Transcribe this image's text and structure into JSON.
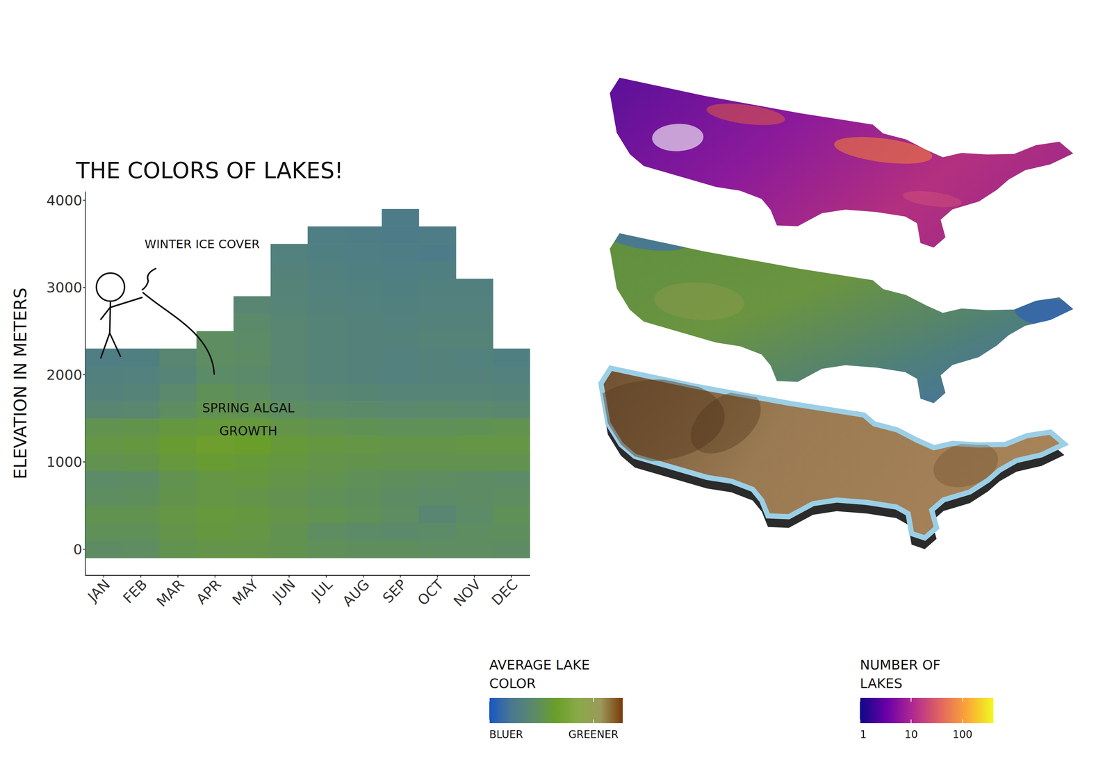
{
  "chart_data": [
    {
      "type": "heatmap",
      "title": "THE COLORS OF LAKES!",
      "y_label": "ELEVATION IN METERS",
      "categories": [
        "JAN",
        "FEB",
        "MAR",
        "APR",
        "MAY",
        "JUN",
        "JUL",
        "AUG",
        "SEP",
        "OCT",
        "NOV",
        "DEC"
      ],
      "y": [
        0,
        200,
        400,
        600,
        800,
        1000,
        1200,
        1400,
        1600,
        1800,
        2000,
        2200,
        2400,
        2600,
        2800,
        3000,
        3200,
        3400,
        3600,
        3800
      ],
      "cells": [
        [
          0.35,
          0.36,
          0.4,
          0.42,
          0.42,
          0.4,
          0.38,
          0.37,
          0.37,
          0.36,
          0.36,
          0.35
        ],
        [
          0.38,
          0.38,
          0.42,
          0.44,
          0.43,
          0.4,
          0.36,
          0.34,
          0.33,
          0.34,
          0.36,
          0.37
        ],
        [
          0.4,
          0.4,
          0.43,
          0.45,
          0.44,
          0.42,
          0.4,
          0.38,
          0.36,
          0.3,
          0.34,
          0.38
        ],
        [
          0.36,
          0.37,
          0.41,
          0.43,
          0.42,
          0.4,
          0.38,
          0.37,
          0.35,
          0.34,
          0.35,
          0.36
        ],
        [
          0.34,
          0.35,
          0.4,
          0.43,
          0.44,
          0.42,
          0.4,
          0.38,
          0.37,
          0.36,
          0.35,
          0.34
        ],
        [
          0.4,
          0.41,
          0.45,
          0.48,
          0.46,
          0.44,
          0.42,
          0.41,
          0.4,
          0.4,
          0.4,
          0.4
        ],
        [
          0.43,
          0.44,
          0.48,
          0.52,
          0.5,
          0.46,
          0.44,
          0.43,
          0.42,
          0.42,
          0.43,
          0.43
        ],
        [
          0.4,
          0.41,
          0.44,
          0.46,
          0.45,
          0.42,
          0.4,
          0.39,
          0.38,
          0.38,
          0.39,
          0.4
        ],
        [
          0.3,
          0.31,
          0.36,
          0.4,
          0.39,
          0.36,
          0.34,
          0.33,
          0.32,
          0.33,
          0.32,
          0.31
        ],
        [
          0.26,
          0.27,
          0.32,
          0.38,
          0.36,
          0.32,
          0.3,
          0.29,
          0.28,
          0.28,
          0.28,
          0.27
        ],
        [
          0.24,
          0.25,
          0.28,
          0.34,
          0.33,
          0.3,
          0.27,
          0.26,
          0.25,
          0.26,
          0.26,
          0.25
        ],
        [
          0.22,
          0.23,
          0.3,
          0.36,
          0.35,
          0.3,
          0.27,
          0.26,
          0.25,
          0.26,
          0.25,
          0.23
        ],
        [
          null,
          null,
          null,
          0.36,
          0.34,
          0.3,
          0.27,
          0.26,
          0.26,
          0.27,
          0.27,
          null
        ],
        [
          null,
          null,
          null,
          null,
          0.33,
          0.3,
          0.27,
          0.26,
          0.25,
          0.26,
          0.26,
          null
        ],
        [
          null,
          null,
          null,
          null,
          0.3,
          0.28,
          0.26,
          0.25,
          0.24,
          0.25,
          0.25,
          null
        ],
        [
          null,
          null,
          null,
          null,
          null,
          0.27,
          0.25,
          0.24,
          0.23,
          0.24,
          0.24,
          null
        ],
        [
          null,
          null,
          null,
          null,
          null,
          0.26,
          0.24,
          0.23,
          0.22,
          0.23,
          null,
          null
        ],
        [
          null,
          null,
          null,
          null,
          null,
          0.25,
          0.23,
          0.22,
          0.21,
          0.2,
          null,
          null
        ],
        [
          null,
          null,
          null,
          null,
          null,
          null,
          0.22,
          0.21,
          0.2,
          0.21,
          null,
          null
        ],
        [
          null,
          null,
          null,
          null,
          null,
          null,
          null,
          null,
          0.2,
          null,
          null,
          null
        ]
      ],
      "ylim": [
        -300,
        4100
      ],
      "yticks": [
        0,
        1000,
        2000,
        3000,
        4000
      ],
      "annotations": [
        "WINTER ICE COVER",
        "SPRING ALGAL GROWTH"
      ],
      "color_scale": {
        "title": "AVERAGE LAKE COLOR",
        "range": [
          0,
          1
        ],
        "colors": [
          "#1a56c4",
          "#4a7890",
          "#5b8a6a",
          "#6a9e2a",
          "#8aaa4a",
          "#9a9a5a",
          "#7a3a08"
        ],
        "ticks": [
          {
            "value": 0,
            "label": "BLUER"
          },
          {
            "value": 0.78,
            "label": "GREENER"
          }
        ]
      }
    },
    {
      "type": "map",
      "color_scale": {
        "title": "NUMBER OF LAKES",
        "range": [
          1,
          400
        ],
        "log": true,
        "colors": [
          "#0d0887",
          "#6a00a8",
          "#b12a90",
          "#e16462",
          "#fca636",
          "#f0f921"
        ],
        "ticks": [
          1,
          10,
          100
        ]
      }
    }
  ]
}
